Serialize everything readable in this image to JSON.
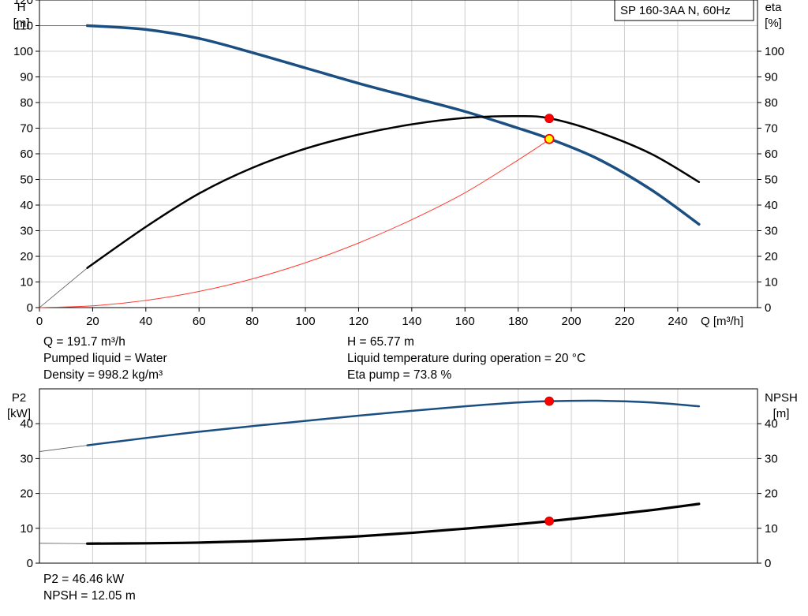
{
  "title": "SP 160-3AA N, 60Hz",
  "top_info_left": [
    "Q = 191.7 m³/h",
    "Pumped liquid = Water",
    "Density = 998.2 kg/m³"
  ],
  "top_info_right": [
    "H = 65.77 m",
    "Liquid temperature during operation = 20 °C",
    "Eta pump = 73.8 %"
  ],
  "bottom_info": [
    "P2 = 46.46 kW",
    "NPSH = 12.05 m"
  ],
  "colors": {
    "head": "#1b4f82",
    "eta": "#000000",
    "system": "#ff3b30",
    "p2": "#1b4f82",
    "npsh": "#000000",
    "dot": "#ff0000",
    "dot_yellow": "#ffff00"
  },
  "chart_data": [
    {
      "type": "line",
      "xlabel": "Q [m³/h]",
      "ylabel": "H\n[m]",
      "ylabel_right": "eta\n[%]",
      "xlim": [
        0,
        270
      ],
      "ylim": [
        0,
        120
      ],
      "y2lim": [
        0,
        120
      ],
      "xticks": [
        0,
        20,
        40,
        60,
        80,
        100,
        120,
        140,
        160,
        180,
        200,
        220,
        240
      ],
      "yticks": [
        0,
        10,
        20,
        30,
        40,
        50,
        60,
        70,
        80,
        90,
        100,
        110,
        120
      ],
      "y2ticks": [
        0,
        10,
        20,
        30,
        40,
        50,
        60,
        70,
        80,
        90,
        100
      ],
      "grid": true,
      "series": [
        {
          "key": "head",
          "axis": "left",
          "x": [
            0,
            18,
            40,
            60,
            80,
            100,
            120,
            140,
            160,
            180,
            192,
            210,
            230,
            248
          ],
          "y": [
            110,
            110,
            108.5,
            105,
            99.5,
            93.5,
            87.5,
            82,
            76.5,
            70,
            65.77,
            58,
            46,
            32.5
          ]
        },
        {
          "key": "eta",
          "axis": "right",
          "x": [
            0,
            18,
            40,
            60,
            80,
            100,
            120,
            140,
            160,
            180,
            192,
            210,
            230,
            248
          ],
          "y": [
            0,
            15.5,
            31.5,
            44.5,
            54.5,
            62,
            67.5,
            71.5,
            74,
            74.7,
            73.8,
            68.5,
            60,
            49
          ]
        },
        {
          "key": "system",
          "axis": "left",
          "x": [
            0,
            20,
            40,
            60,
            80,
            100,
            120,
            140,
            160,
            180,
            192
          ],
          "y": [
            0,
            0.7,
            2.8,
            6.3,
            11.2,
            17.5,
            25.2,
            34.3,
            44.8,
            57.6,
            65.77
          ]
        }
      ],
      "operating_points": [
        {
          "axis": "left",
          "x": 191.7,
          "y": 65.77,
          "style": "yellow"
        },
        {
          "axis": "right",
          "x": 191.7,
          "y": 73.8,
          "style": "red"
        }
      ]
    },
    {
      "type": "line",
      "ylabel": "P2\n[kW]",
      "ylabel_right": "NPSH\n[m]",
      "xlim": [
        0,
        270
      ],
      "ylim": [
        0,
        50
      ],
      "y2lim": [
        0,
        50
      ],
      "yticks": [
        0,
        10,
        20,
        30,
        40
      ],
      "y2ticks": [
        0,
        10,
        20,
        30,
        40
      ],
      "grid": true,
      "series": [
        {
          "key": "p2",
          "axis": "left",
          "x": [
            0,
            18,
            40,
            60,
            80,
            100,
            120,
            140,
            160,
            180,
            192,
            210,
            230,
            248
          ],
          "y": [
            32,
            33.8,
            35.9,
            37.7,
            39.3,
            40.8,
            42.3,
            43.7,
            45,
            46.1,
            46.46,
            46.6,
            46.1,
            45
          ]
        },
        {
          "key": "npsh",
          "axis": "right",
          "x": [
            0,
            18,
            40,
            60,
            80,
            100,
            120,
            140,
            160,
            180,
            192,
            210,
            230,
            248
          ],
          "y": [
            5.7,
            5.6,
            5.7,
            5.9,
            6.3,
            6.9,
            7.7,
            8.7,
            9.9,
            11.2,
            12.05,
            13.5,
            15.2,
            17
          ]
        }
      ],
      "operating_points": [
        {
          "axis": "left",
          "x": 191.7,
          "y": 46.46,
          "style": "red"
        },
        {
          "axis": "right",
          "x": 191.7,
          "y": 12.05,
          "style": "red"
        }
      ]
    }
  ]
}
